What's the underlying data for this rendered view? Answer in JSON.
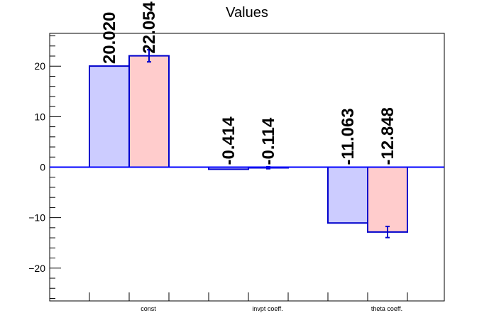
{
  "chart_data": {
    "type": "bar",
    "title": "Values",
    "xlabel": "",
    "ylabel": "",
    "categories": [
      "const",
      "invpt coeff.",
      "theta coeff."
    ],
    "series": [
      {
        "values": [
          20.02,
          -0.414,
          -11.063
        ],
        "errors": [
          0,
          0,
          0
        ],
        "labels": [
          "20.020",
          "-0.414",
          "-11.063"
        ]
      },
      {
        "values": [
          22.054,
          -0.114,
          -12.848
        ],
        "errors": [
          1.2,
          0.2,
          1.1
        ],
        "labels": [
          "22.054",
          "-0.114",
          "-12.848"
        ]
      }
    ],
    "ylim": [
      -26.5,
      26.5
    ],
    "yticks": [
      -20,
      -10,
      0,
      10,
      20
    ],
    "ytick_labels": [
      "−20",
      "−10",
      "0",
      "10",
      "20"
    ],
    "grid": false,
    "legend": "none",
    "colors": {
      "series_fills": [
        "#ccccff",
        "#ffcccc"
      ],
      "bar_outline": "#0000cc",
      "zero_line": "#0000ff",
      "error_bar": "#0000cc",
      "axis": "#000000"
    }
  }
}
